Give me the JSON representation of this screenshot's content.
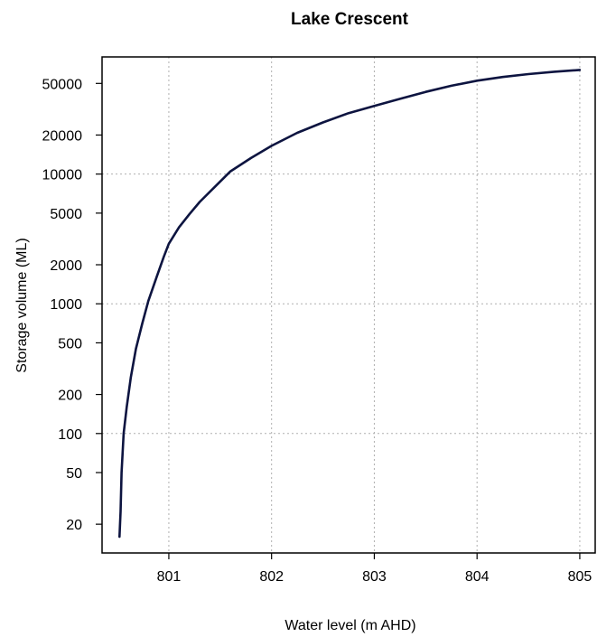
{
  "chart_data": {
    "type": "line",
    "title": "Lake Crescent",
    "xlabel": "Water level (m AHD)",
    "ylabel": "Storage volume (ML)",
    "yscale": "log",
    "xlim": [
      800.35,
      805.15
    ],
    "ylim": [
      12,
      80000
    ],
    "grid": true,
    "x_ticks": [
      801,
      802,
      803,
      804,
      805
    ],
    "y_ticks": [
      20,
      50,
      100,
      200,
      500,
      1000,
      2000,
      5000,
      10000,
      20000,
      50000
    ],
    "x_grid": [
      801,
      802,
      803,
      804,
      805
    ],
    "y_grid": [
      100,
      1000,
      10000
    ],
    "series": [
      {
        "color": "#0d1440",
        "x": [
          800.52,
          800.53,
          800.54,
          800.56,
          800.59,
          800.63,
          800.68,
          800.74,
          800.8,
          800.88,
          800.95,
          801.0,
          801.1,
          801.2,
          801.3,
          801.45,
          801.6,
          801.8,
          802.0,
          802.25,
          802.5,
          802.75,
          803.0,
          803.25,
          803.5,
          803.75,
          804.0,
          804.25,
          804.5,
          804.75,
          805.0
        ],
        "y": [
          16,
          25,
          50,
          100,
          160,
          270,
          450,
          700,
          1050,
          1600,
          2300,
          2900,
          3900,
          4900,
          6100,
          8000,
          10500,
          13300,
          16500,
          20800,
          25000,
          29500,
          33500,
          38000,
          43000,
          48000,
          52500,
          56000,
          59000,
          61500,
          63500
        ]
      }
    ]
  }
}
